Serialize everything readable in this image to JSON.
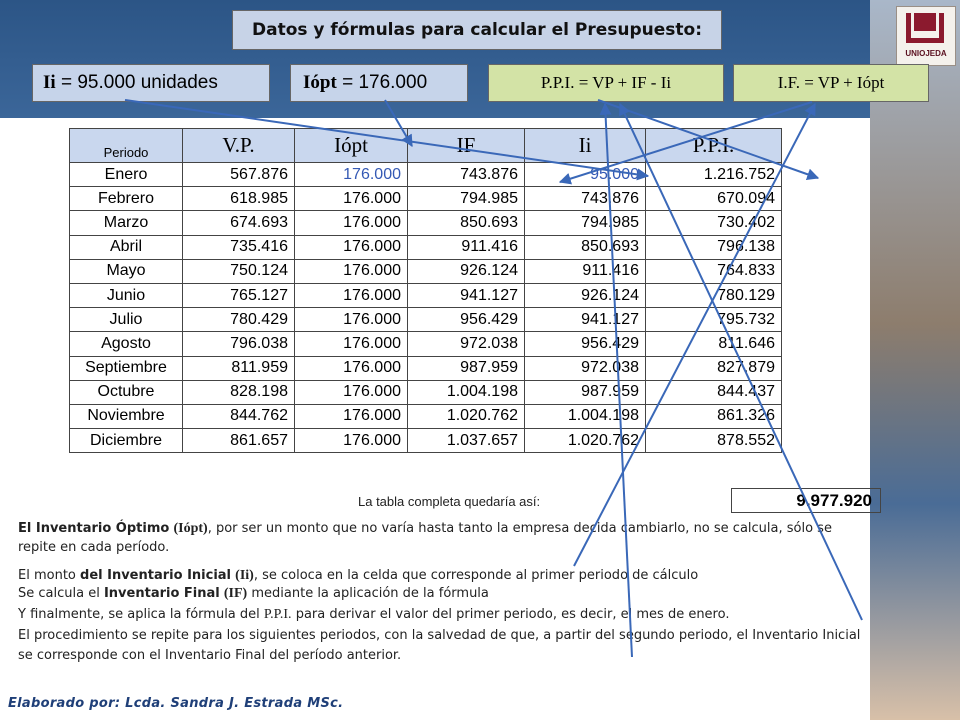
{
  "title": "Datos y fórmulas para calcular el Presupuesto:",
  "boxes": {
    "ii_symbol": "Ii",
    "ii_value": "= 95.000 unidades",
    "iopt_symbol": "Iópt",
    "iopt_value": "= 176.000",
    "ppi_formula": "P.P.I. = VP + IF - Ii",
    "if_formula": "I.F. = VP + Iópt"
  },
  "table": {
    "headers": [
      "Periodo",
      "V.P.",
      "Iópt",
      "IF",
      "Ii",
      "P.P.I."
    ],
    "rows": [
      [
        "Enero",
        "567.876",
        "176.000",
        "743.876",
        "95.000",
        "1.216.752"
      ],
      [
        "Febrero",
        "618.985",
        "176.000",
        "794.985",
        "743.876",
        "670.094"
      ],
      [
        "Marzo",
        "674.693",
        "176.000",
        "850.693",
        "794.985",
        "730.402"
      ],
      [
        "Abril",
        "735.416",
        "176.000",
        "911.416",
        "850.693",
        "796.138"
      ],
      [
        "Mayo",
        "750.124",
        "176.000",
        "926.124",
        "911.416",
        "764.833"
      ],
      [
        "Junio",
        "765.127",
        "176.000",
        "941.127",
        "926.124",
        "780.129"
      ],
      [
        "Julio",
        "780.429",
        "176.000",
        "956.429",
        "941.127",
        "795.732"
      ],
      [
        "Agosto",
        "796.038",
        "176.000",
        "972.038",
        "956.429",
        "811.646"
      ],
      [
        "Septiembre",
        "811.959",
        "176.000",
        "987.959",
        "972.038",
        "827.879"
      ],
      [
        "Octubre",
        "828.198",
        "176.000",
        "1.004.198",
        "987.959",
        "844.437"
      ],
      [
        "Noviembre",
        "844.762",
        "176.000",
        "1.020.762",
        "1.004.198",
        "861.326"
      ],
      [
        "Diciembre",
        "861.657",
        "176.000",
        "1.037.657",
        "1.020.762",
        "878.552"
      ]
    ],
    "total_label": "La tabla completa quedaría así:",
    "total_value": "9.977.920"
  },
  "notes": {
    "p1_a": "El Inventario Óptimo",
    "p1_b": "(Iópt)",
    "p1_c": ", por ser un monto que no varía hasta tanto la empresa decida cambiarlo, no se calcula, sólo se repite en cada período.",
    "p2_a": "El monto",
    "p2_b": "del Inventario Inicial",
    "p2_c": "(Ii)",
    "p2_d": ", se coloca en la celda que corresponde al primer periodo de cálculo",
    "p3_a": "Se calcula el",
    "p3_b": "Inventario Final",
    "p3_c": "(IF)",
    "p3_d": "mediante la aplicación de la fórmula",
    "p4_a": "Y finalmente, se aplica la fórmula del",
    "p4_b": "P.P.I.",
    "p4_c": "para derivar el valor del primer periodo, es decir, el mes de enero.",
    "p5": "El procedimiento se repite para los siguientes periodos, con la salvedad de que, a partir del segundo periodo, el Inventario Inicial se corresponde con el Inventario Final del período anterior."
  },
  "footer": "Elaborado por: Lcda. Sandra J. Estrada MSc.",
  "logo_text": "UNIOJEDA"
}
